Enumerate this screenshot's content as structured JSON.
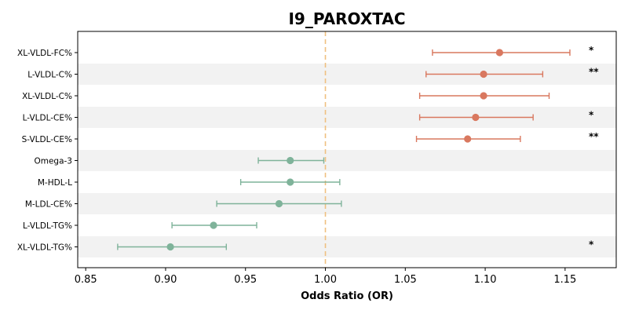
{
  "chart_data": {
    "type": "forest",
    "title": "I9_PAROXTAC",
    "xlabel": "Odds Ratio (OR)",
    "xlim": [
      0.845,
      1.182
    ],
    "xticks": [
      "0.85",
      "0.90",
      "0.95",
      "1.00",
      "1.05",
      "1.10",
      "1.15"
    ],
    "reference_line": 1.0,
    "reference_color": "#f0c080",
    "colors": {
      "positive": "#d9785f",
      "negative": "#7fb39a",
      "band": "#f2f2f2"
    },
    "rows": [
      {
        "label": "XL-VLDL-FC%",
        "or": 1.109,
        "lo": 1.067,
        "hi": 1.153,
        "sig": "*"
      },
      {
        "label": "L-VLDL-C%",
        "or": 1.099,
        "lo": 1.063,
        "hi": 1.136,
        "sig": "**"
      },
      {
        "label": "XL-VLDL-C%",
        "or": 1.099,
        "lo": 1.059,
        "hi": 1.14,
        "sig": ""
      },
      {
        "label": "L-VLDL-CE%",
        "or": 1.094,
        "lo": 1.059,
        "hi": 1.13,
        "sig": "*"
      },
      {
        "label": "S-VLDL-CE%",
        "or": 1.089,
        "lo": 1.057,
        "hi": 1.122,
        "sig": "**"
      },
      {
        "label": "Omega-3",
        "or": 0.978,
        "lo": 0.958,
        "hi": 0.999,
        "sig": ""
      },
      {
        "label": "M-HDL-L",
        "or": 0.978,
        "lo": 0.947,
        "hi": 1.009,
        "sig": ""
      },
      {
        "label": "M-LDL-CE%",
        "or": 0.971,
        "lo": 0.932,
        "hi": 1.01,
        "sig": ""
      },
      {
        "label": "L-VLDL-TG%",
        "or": 0.93,
        "lo": 0.904,
        "hi": 0.957,
        "sig": ""
      },
      {
        "label": "XL-VLDL-TG%",
        "or": 0.903,
        "lo": 0.87,
        "hi": 0.938,
        "sig": "*"
      }
    ]
  }
}
